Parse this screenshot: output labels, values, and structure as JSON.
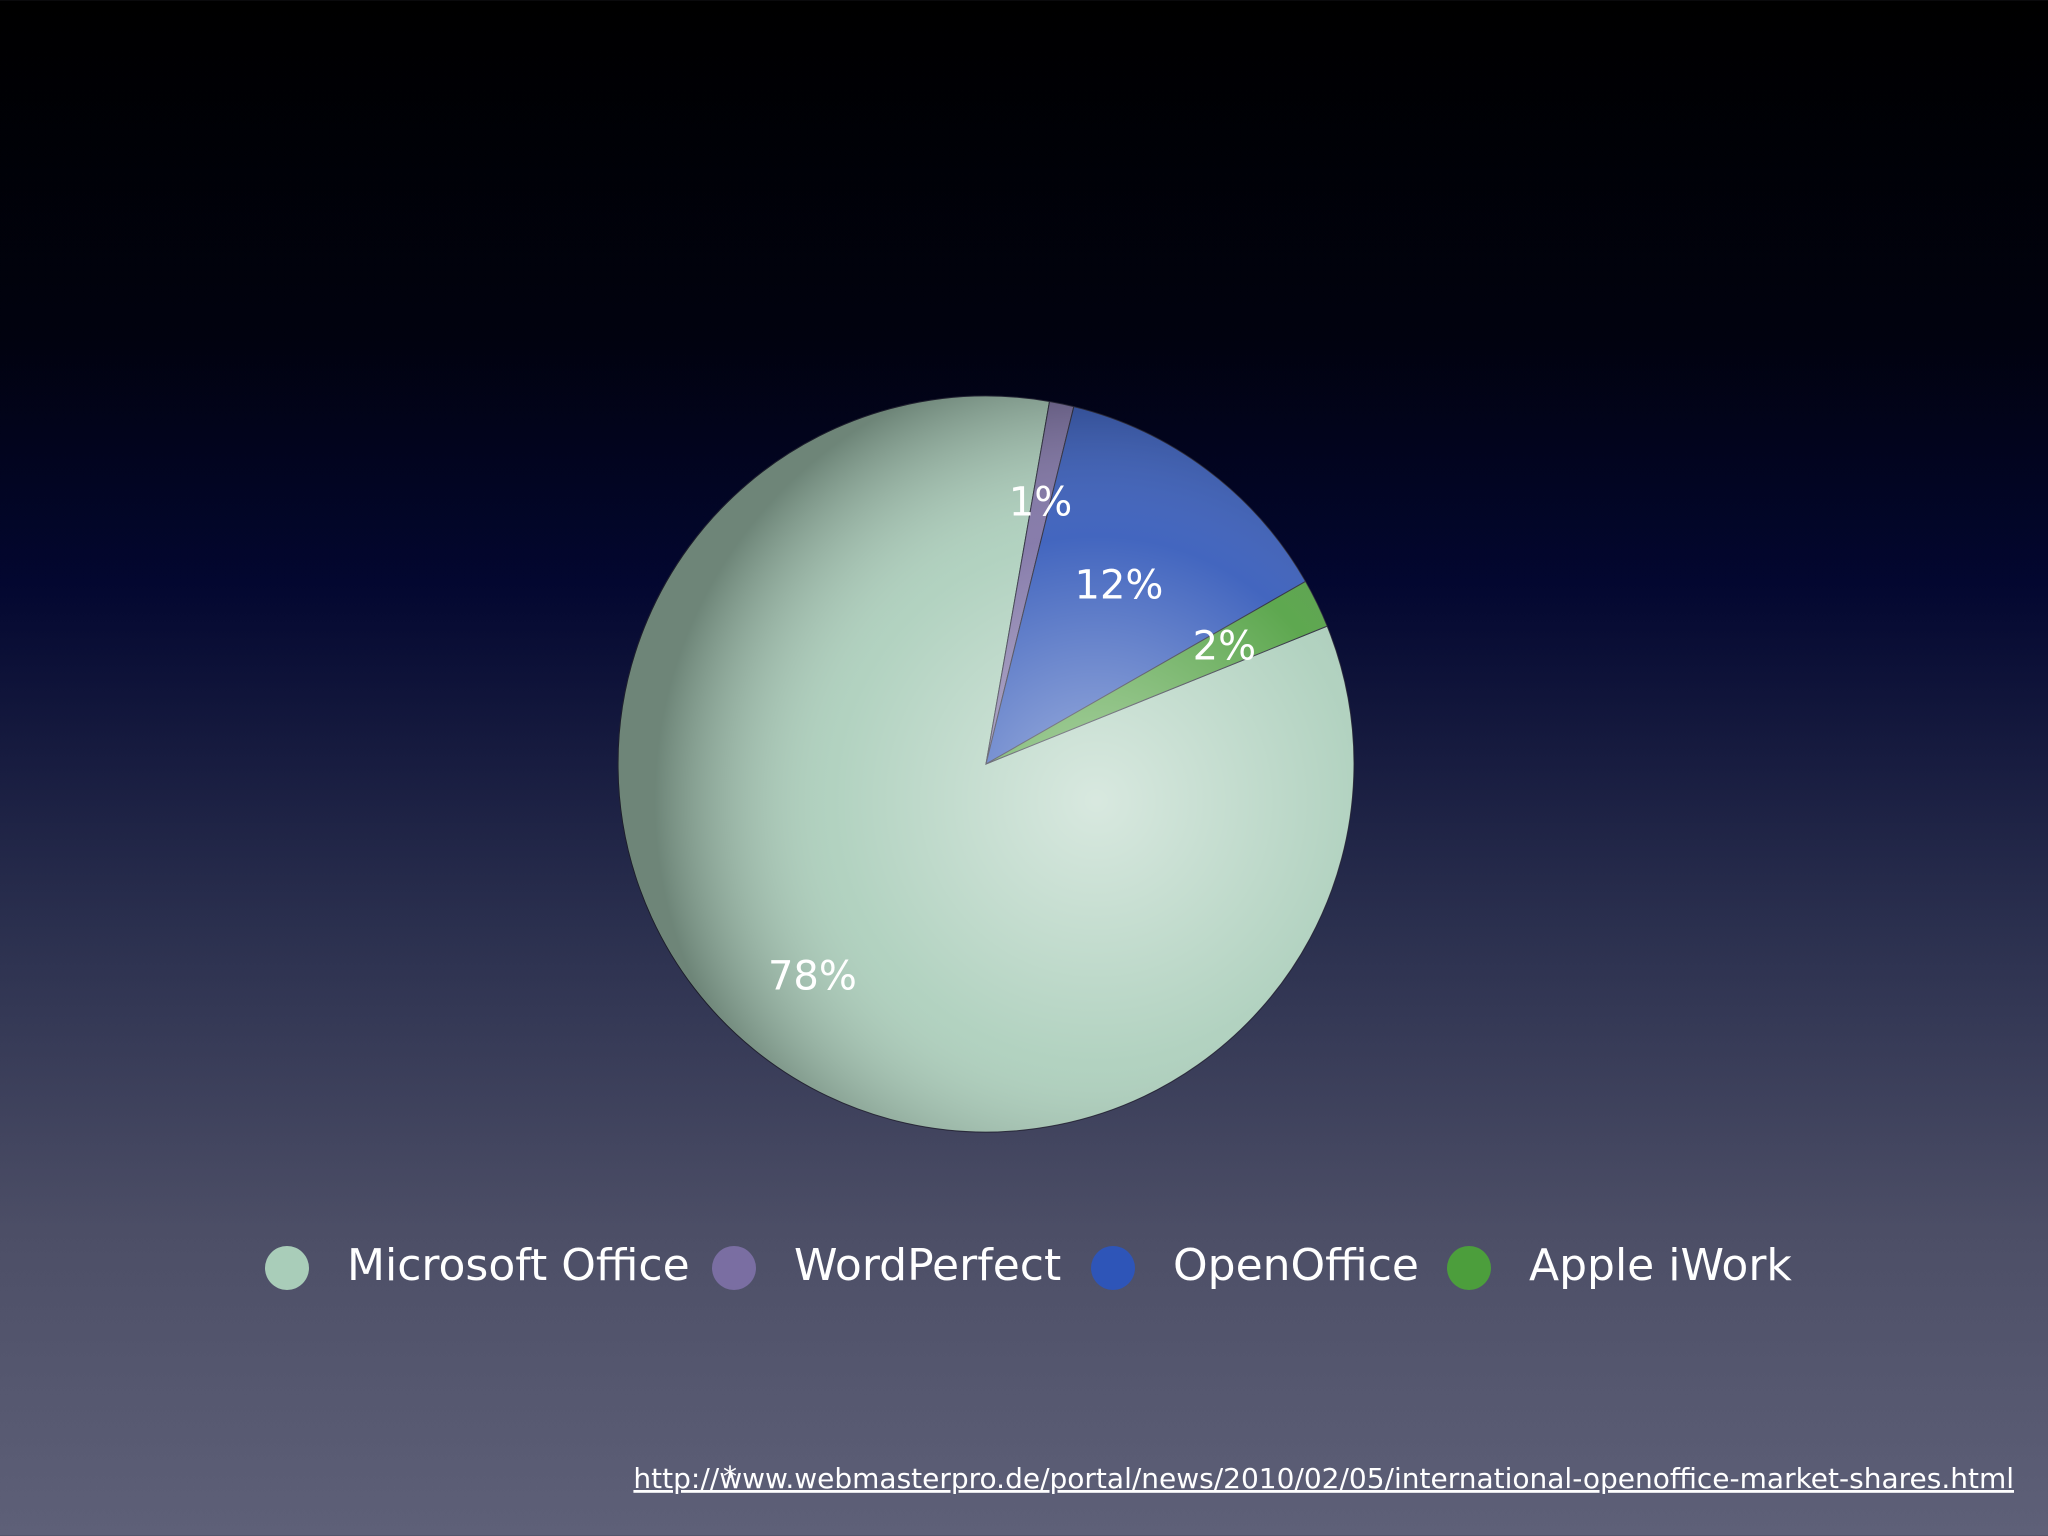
{
  "chart_data": {
    "type": "pie",
    "categories": [
      "Microsoft Office",
      "WordPerfect",
      "OpenOffice",
      "Apple iWork"
    ],
    "values": [
      78,
      1,
      12,
      2
    ],
    "value_labels": [
      "78%",
      "1%",
      "12%",
      "2%"
    ],
    "colors": [
      "#a9cdb9",
      "#7a6ea2",
      "#2e55b8",
      "#4c9e3c"
    ],
    "footnote_mark": "*",
    "footnote": "http://www.webmasterpro.de/portal/news/2010/02/05/international-openoffice-market-shares.html"
  }
}
